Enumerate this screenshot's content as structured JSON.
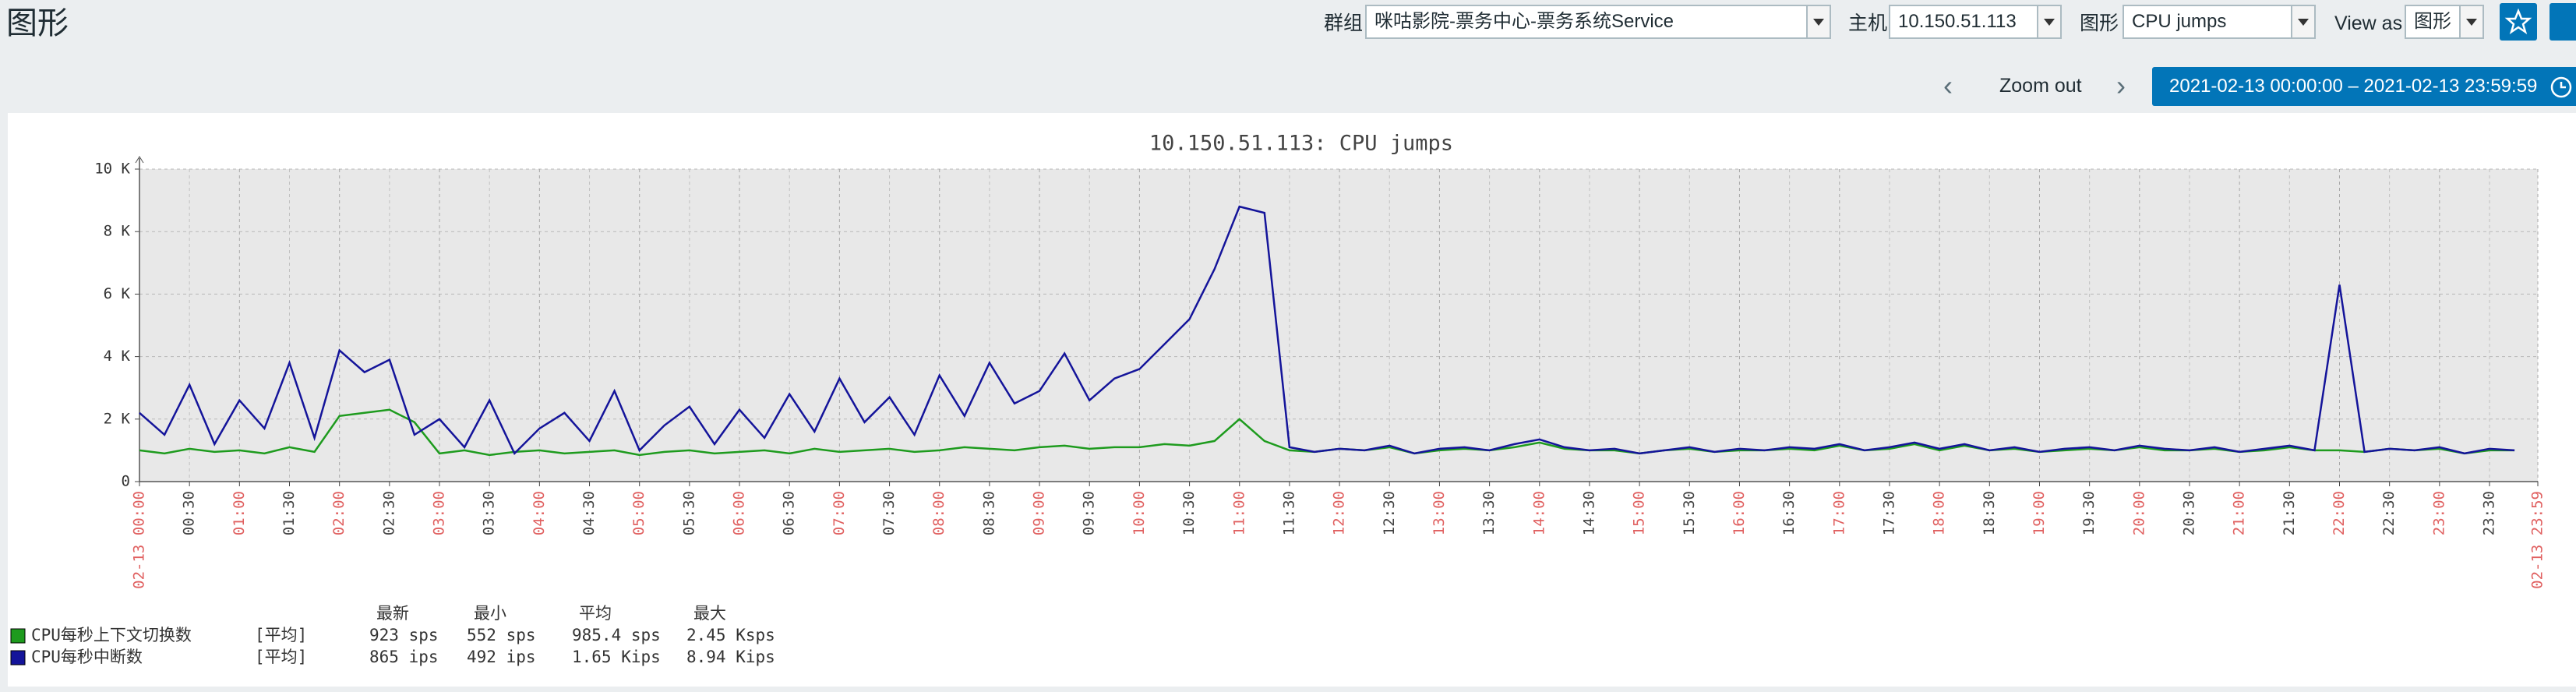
{
  "header": {
    "title": "图形",
    "group_label": "群组",
    "group": "咪咕影院-票务中心-票务系统Service",
    "host_label": "主机",
    "host": "10.150.51.113",
    "graph_label": "图形",
    "graph": "CPU jumps",
    "view_as_label": "View as",
    "view_as": "图形",
    "zoom_out": "Zoom out",
    "time_range": "2021-02-13 00:00:00 – 2021-02-13 23:59:59"
  },
  "chart_data": {
    "type": "line",
    "title": "10.150.51.113: CPU jumps",
    "x": [
      0,
      0.25,
      0.5,
      0.75,
      1,
      1.25,
      1.5,
      1.75,
      2,
      2.25,
      2.5,
      2.75,
      3,
      3.25,
      3.5,
      3.75,
      4,
      4.25,
      4.5,
      4.75,
      5,
      5.25,
      5.5,
      5.75,
      6,
      6.25,
      6.5,
      6.75,
      7,
      7.25,
      7.5,
      7.75,
      8,
      8.25,
      8.5,
      8.75,
      9,
      9.25,
      9.5,
      9.75,
      10,
      10.25,
      10.5,
      10.75,
      11,
      11.25,
      11.5,
      11.75,
      12,
      12.25,
      12.5,
      12.75,
      13,
      13.25,
      13.5,
      13.75,
      14,
      14.25,
      14.5,
      14.75,
      15,
      15.25,
      15.5,
      15.75,
      16,
      16.25,
      16.5,
      16.75,
      17,
      17.25,
      17.5,
      17.75,
      18,
      18.25,
      18.5,
      18.75,
      19,
      19.25,
      19.5,
      19.75,
      20,
      20.25,
      20.5,
      20.75,
      21,
      21.25,
      21.5,
      21.75,
      22,
      22.25,
      22.5,
      22.75,
      23,
      23.25,
      23.5,
      23.75
    ],
    "series": [
      {
        "name": "CPU每秒上下文切换数",
        "color": "#1e9b1e",
        "values": [
          1000,
          900,
          1050,
          950,
          1000,
          900,
          1100,
          950,
          2100,
          2200,
          2300,
          1900,
          900,
          1000,
          850,
          950,
          1000,
          900,
          950,
          1000,
          850,
          950,
          1000,
          900,
          950,
          1000,
          900,
          1050,
          950,
          1000,
          1050,
          950,
          1000,
          1100,
          1050,
          1000,
          1100,
          1150,
          1050,
          1100,
          1100,
          1200,
          1150,
          1300,
          2000,
          1300,
          1000,
          950,
          1050,
          1000,
          1100,
          900,
          1000,
          1050,
          1000,
          1100,
          1250,
          1050,
          1000,
          1000,
          900,
          1000,
          1050,
          950,
          1000,
          1000,
          1050,
          1000,
          1150,
          1000,
          1050,
          1200,
          1000,
          1150,
          1000,
          1050,
          950,
          1000,
          1050,
          1000,
          1100,
          1000,
          1000,
          1050,
          950,
          1000,
          1100,
          1000,
          1000,
          950,
          1050,
          1000,
          1050,
          900,
          1000,
          1000
        ]
      },
      {
        "name": "CPU每秒中断数",
        "color": "#14149a",
        "values": [
          2200,
          1500,
          3100,
          1200,
          2600,
          1700,
          3800,
          1400,
          4200,
          3500,
          3900,
          1500,
          2000,
          1100,
          2600,
          900,
          1700,
          2200,
          1300,
          2900,
          1000,
          1800,
          2400,
          1200,
          2300,
          1400,
          2800,
          1600,
          3300,
          1900,
          2700,
          1500,
          3400,
          2100,
          3800,
          2500,
          2900,
          4100,
          2600,
          3300,
          3600,
          4400,
          5200,
          6800,
          8800,
          8600,
          1100,
          950,
          1050,
          1000,
          1150,
          900,
          1050,
          1100,
          1000,
          1200,
          1350,
          1100,
          1000,
          1050,
          900,
          1000,
          1100,
          950,
          1050,
          1000,
          1100,
          1050,
          1200,
          1000,
          1100,
          1250,
          1050,
          1200,
          1000,
          1100,
          950,
          1050,
          1100,
          1000,
          1150,
          1050,
          1000,
          1100,
          950,
          1050,
          1150,
          1000,
          6300,
          950,
          1050,
          1000,
          1100,
          900,
          1050,
          1000
        ]
      }
    ],
    "xlim": [
      0,
      23.983
    ],
    "xticks": [
      {
        "value": 0,
        "label": "02-13 00:00"
      },
      {
        "value": 0.5,
        "label": "00:30"
      },
      {
        "value": 1,
        "label": "01:00"
      },
      {
        "value": 1.5,
        "label": "01:30"
      },
      {
        "value": 2,
        "label": "02:00"
      },
      {
        "value": 2.5,
        "label": "02:30"
      },
      {
        "value": 3,
        "label": "03:00"
      },
      {
        "value": 3.5,
        "label": "03:30"
      },
      {
        "value": 4,
        "label": "04:00"
      },
      {
        "value": 4.5,
        "label": "04:30"
      },
      {
        "value": 5,
        "label": "05:00"
      },
      {
        "value": 5.5,
        "label": "05:30"
      },
      {
        "value": 6,
        "label": "06:00"
      },
      {
        "value": 6.5,
        "label": "06:30"
      },
      {
        "value": 7,
        "label": "07:00"
      },
      {
        "value": 7.5,
        "label": "07:30"
      },
      {
        "value": 8,
        "label": "08:00"
      },
      {
        "value": 8.5,
        "label": "08:30"
      },
      {
        "value": 9,
        "label": "09:00"
      },
      {
        "value": 9.5,
        "label": "09:30"
      },
      {
        "value": 10,
        "label": "10:00"
      },
      {
        "value": 10.5,
        "label": "10:30"
      },
      {
        "value": 11,
        "label": "11:00"
      },
      {
        "value": 11.5,
        "label": "11:30"
      },
      {
        "value": 12,
        "label": "12:00"
      },
      {
        "value": 12.5,
        "label": "12:30"
      },
      {
        "value": 13,
        "label": "13:00"
      },
      {
        "value": 13.5,
        "label": "13:30"
      },
      {
        "value": 14,
        "label": "14:00"
      },
      {
        "value": 14.5,
        "label": "14:30"
      },
      {
        "value": 15,
        "label": "15:00"
      },
      {
        "value": 15.5,
        "label": "15:30"
      },
      {
        "value": 16,
        "label": "16:00"
      },
      {
        "value": 16.5,
        "label": "16:30"
      },
      {
        "value": 17,
        "label": "17:00"
      },
      {
        "value": 17.5,
        "label": "17:30"
      },
      {
        "value": 18,
        "label": "18:00"
      },
      {
        "value": 18.5,
        "label": "18:30"
      },
      {
        "value": 19,
        "label": "19:00"
      },
      {
        "value": 19.5,
        "label": "19:30"
      },
      {
        "value": 20,
        "label": "20:00"
      },
      {
        "value": 20.5,
        "label": "20:30"
      },
      {
        "value": 21,
        "label": "21:00"
      },
      {
        "value": 21.5,
        "label": "21:30"
      },
      {
        "value": 22,
        "label": "22:00"
      },
      {
        "value": 22.5,
        "label": "22:30"
      },
      {
        "value": 23,
        "label": "23:00"
      },
      {
        "value": 23.5,
        "label": "23:30"
      },
      {
        "value": 23.983,
        "label": "02-13 23:59"
      }
    ],
    "ylim": [
      0,
      10000
    ],
    "yticks": [
      0,
      {
        "value": 2000,
        "label": "2 K"
      },
      {
        "value": 4000,
        "label": "4 K"
      },
      {
        "value": 6000,
        "label": "6 K"
      },
      {
        "value": 8000,
        "label": "8 K"
      },
      {
        "value": 10000,
        "label": "10 K"
      }
    ],
    "grid": true,
    "major_tick_color": "#e06060",
    "minor_tick_color": "#444444",
    "legend": {
      "headers": [
        "最新",
        "最小",
        "平均",
        "最大"
      ],
      "rows": [
        [
          "[平均]",
          "923 sps",
          "552 sps",
          "985.4 sps",
          "2.45 Ksps"
        ],
        [
          "[平均]",
          "865 ips",
          "492 ips",
          "1.65 Kips",
          "8.94 Kips"
        ]
      ]
    }
  }
}
